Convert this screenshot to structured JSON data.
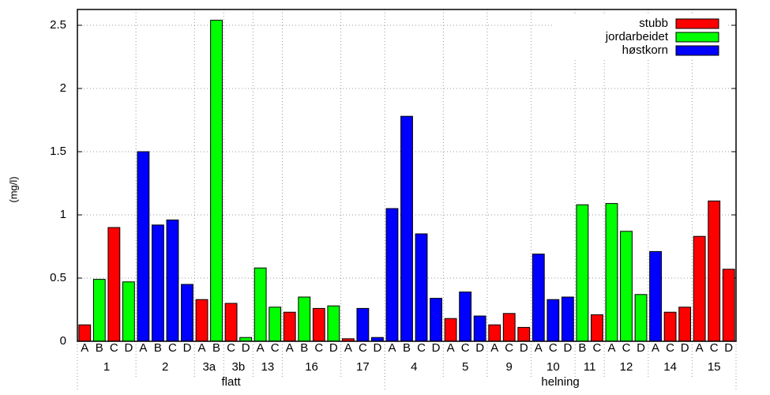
{
  "chart_data": {
    "type": "bar",
    "y_label": "(mg/l)",
    "categories": [
      "A",
      "B",
      "C",
      "D",
      "A",
      "B",
      "C",
      "D",
      "A",
      "B",
      "C",
      "D",
      "A",
      "C",
      "A",
      "B",
      "C",
      "D",
      "A",
      "C",
      "D",
      "A",
      "B",
      "C",
      "D",
      "A",
      "C",
      "D",
      "A",
      "C",
      "D",
      "A",
      "C",
      "D",
      "B",
      "C",
      "A",
      "C",
      "D",
      "A",
      "C",
      "D",
      "A",
      "C",
      "D"
    ],
    "group_labels": [
      "1",
      null,
      null,
      null,
      "2",
      null,
      null,
      null,
      "3a",
      null,
      "3b",
      null,
      "13",
      null,
      "16",
      null,
      null,
      null,
      "17",
      null,
      null,
      "4",
      null,
      null,
      null,
      "5",
      null,
      null,
      "9",
      null,
      null,
      "10",
      null,
      null,
      "11",
      null,
      "12",
      null,
      null,
      "14",
      null,
      null,
      "15",
      null,
      null
    ],
    "super_labels": [
      "flatt",
      null,
      null,
      null,
      null,
      null,
      null,
      null,
      null,
      null,
      null,
      null,
      null,
      null,
      null,
      null,
      null,
      null,
      null,
      null,
      null,
      "helning",
      null,
      null,
      null,
      null,
      null,
      null,
      null,
      null,
      null,
      null,
      null,
      null,
      null,
      null,
      null,
      null,
      null,
      null,
      null,
      null,
      null,
      null,
      null
    ],
    "series": [
      {
        "name": "stubb",
        "color": "#ff0000",
        "values": [
          0.13,
          null,
          0.9,
          null,
          null,
          null,
          null,
          null,
          0.33,
          null,
          0.3,
          null,
          null,
          null,
          0.23,
          null,
          0.26,
          null,
          0.02,
          null,
          null,
          null,
          null,
          null,
          null,
          0.18,
          null,
          null,
          0.13,
          0.22,
          0.11,
          null,
          null,
          null,
          null,
          0.21,
          null,
          null,
          null,
          null,
          0.23,
          0.27,
          0.83,
          1.11,
          0.57
        ]
      },
      {
        "name": "jordarbeidet",
        "color": "#00ff00",
        "values": [
          null,
          0.49,
          null,
          0.47,
          null,
          null,
          null,
          null,
          null,
          2.54,
          null,
          0.03,
          0.58,
          0.27,
          null,
          0.35,
          null,
          0.28,
          null,
          null,
          null,
          null,
          null,
          null,
          null,
          null,
          null,
          null,
          null,
          null,
          null,
          null,
          null,
          null,
          1.08,
          null,
          1.09,
          0.87,
          0.37,
          null,
          null,
          null,
          null,
          null,
          null
        ]
      },
      {
        "name": "høstkorn",
        "color": "#0000ff",
        "values": [
          null,
          null,
          null,
          null,
          1.5,
          0.92,
          0.96,
          0.45,
          null,
          null,
          null,
          null,
          null,
          null,
          null,
          null,
          null,
          null,
          null,
          0.26,
          0.03,
          1.05,
          1.78,
          0.85,
          0.34,
          null,
          0.39,
          0.2,
          null,
          null,
          null,
          0.69,
          0.33,
          0.35,
          null,
          null,
          null,
          null,
          null,
          0.71,
          null,
          null,
          null,
          null,
          null
        ]
      }
    ],
    "ylim": [
      0,
      2.625
    ],
    "yticks": [
      0,
      0.5,
      1,
      1.5,
      2,
      2.5
    ],
    "grid": true,
    "legend": "top-right"
  }
}
